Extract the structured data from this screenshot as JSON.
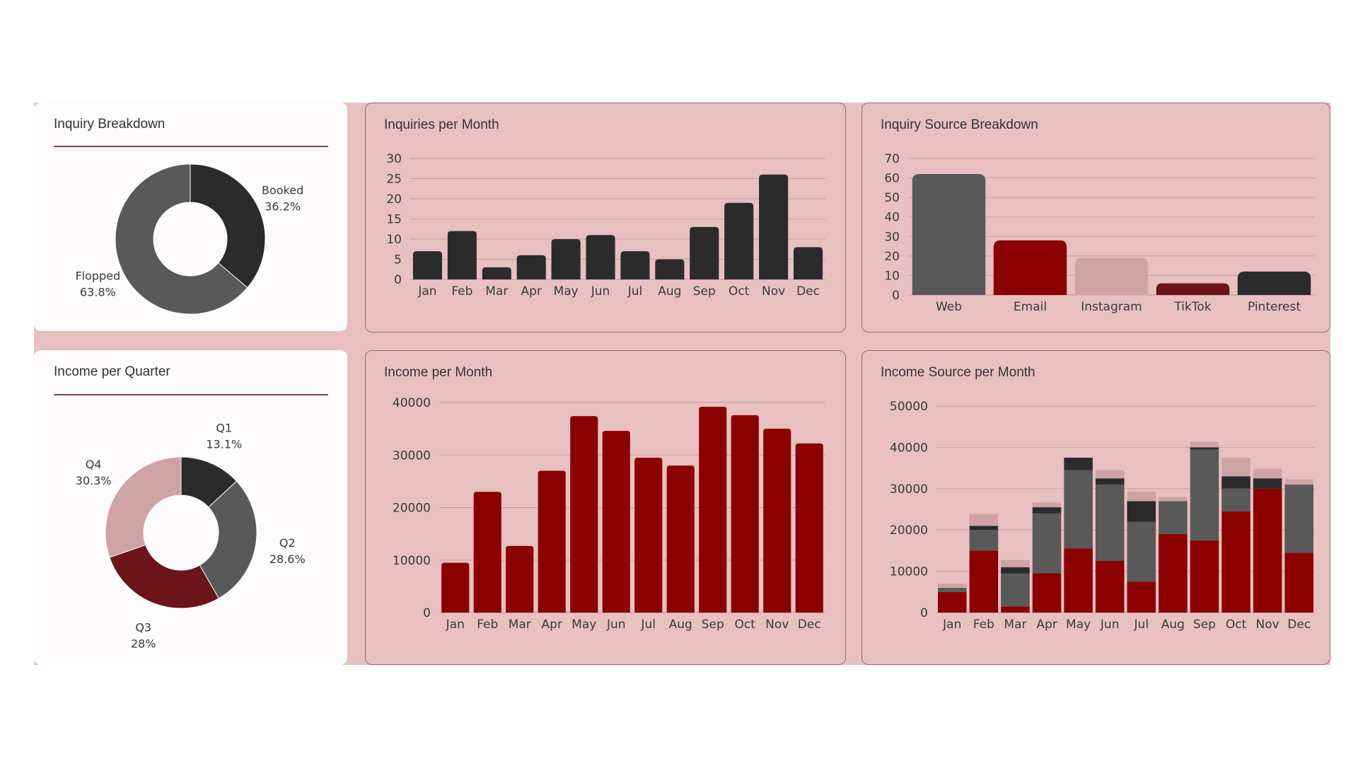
{
  "colors": {
    "dark": "#2b2b2b",
    "gray": "#595959",
    "red": "#8b0000",
    "maroon": "#6b1419",
    "rose": "#cfa3a3",
    "grid": "#c79a9a",
    "panel_pink": "#e8c0c0"
  },
  "panels": {
    "inquiry_breakdown": {
      "title": "Inquiry Breakdown"
    },
    "inquiries_per_month": {
      "title": "Inquiries per Month"
    },
    "inquiry_source": {
      "title": "Inquiry Source Breakdown"
    },
    "income_per_quarter": {
      "title": "Income per Quarter"
    },
    "income_per_month": {
      "title": "Income per Month"
    },
    "income_source_month": {
      "title": "Income Source per Month"
    }
  },
  "chart_data": [
    {
      "id": "inquiry_breakdown",
      "type": "pie",
      "title": "Inquiry Breakdown",
      "slices": [
        {
          "label": "Booked",
          "percent_label": "36.2%",
          "value": 36.2,
          "color": "#2b2b2b"
        },
        {
          "label": "Flopped",
          "percent_label": "63.8%",
          "value": 63.8,
          "color": "#595959"
        }
      ]
    },
    {
      "id": "inquiries_per_month",
      "type": "bar",
      "title": "Inquiries per Month",
      "categories": [
        "Jan",
        "Feb",
        "Mar",
        "Apr",
        "May",
        "Jun",
        "Jul",
        "Aug",
        "Sep",
        "Oct",
        "Nov",
        "Dec"
      ],
      "values": [
        7,
        12,
        3,
        6,
        10,
        11,
        7,
        5,
        13,
        19,
        26,
        8
      ],
      "ylim": [
        0,
        30
      ],
      "yticks": [
        0,
        5,
        10,
        15,
        20,
        25,
        30
      ],
      "color": "#2b2b2b",
      "grid": true
    },
    {
      "id": "inquiry_source",
      "type": "bar",
      "title": "Inquiry Source Breakdown",
      "categories": [
        "Web",
        "Email",
        "Instagram",
        "TikTok",
        "Pinterest"
      ],
      "values": [
        62,
        28,
        19,
        6,
        12
      ],
      "colors": [
        "#595959",
        "#8b0000",
        "#cfa3a3",
        "#6b1419",
        "#2b2b2b"
      ],
      "ylim": [
        0,
        70
      ],
      "yticks": [
        0,
        10,
        20,
        30,
        40,
        50,
        60,
        70
      ],
      "grid": true
    },
    {
      "id": "income_per_quarter",
      "type": "pie",
      "title": "Income per Quarter",
      "slices": [
        {
          "label": "Q1",
          "percent_label": "13.1%",
          "value": 13.1,
          "color": "#2b2b2b"
        },
        {
          "label": "Q2",
          "percent_label": "28.6%",
          "value": 28.6,
          "color": "#595959"
        },
        {
          "label": "Q3",
          "percent_label": "28%",
          "value": 28.0,
          "color": "#6b1419"
        },
        {
          "label": "Q4",
          "percent_label": "30.3%",
          "value": 30.3,
          "color": "#cfa3a3"
        }
      ]
    },
    {
      "id": "income_per_month",
      "type": "bar",
      "title": "Income per Month",
      "categories": [
        "Jan",
        "Feb",
        "Mar",
        "Apr",
        "May",
        "Jun",
        "Jul",
        "Aug",
        "Sep",
        "Oct",
        "Nov",
        "Dec"
      ],
      "values": [
        9500,
        23000,
        12700,
        27000,
        37400,
        34600,
        29500,
        28000,
        39200,
        37600,
        35000,
        32200
      ],
      "ylim": [
        0,
        40000
      ],
      "yticks": [
        0,
        10000,
        20000,
        30000,
        40000
      ],
      "color": "#8b0000",
      "grid": true
    },
    {
      "id": "income_source_month",
      "type": "bar",
      "stacked": true,
      "title": "Income Source per Month",
      "categories": [
        "Jan",
        "Feb",
        "Mar",
        "Apr",
        "May",
        "Jun",
        "Jul",
        "Aug",
        "Sep",
        "Oct",
        "Nov",
        "Dec"
      ],
      "ylim": [
        0,
        50000
      ],
      "yticks": [
        0,
        10000,
        20000,
        30000,
        40000,
        50000
      ],
      "grid": true,
      "series": [
        {
          "color": "#8b0000",
          "values": [
            5000,
            15000,
            1500,
            9500,
            15500,
            12500,
            7500,
            19000,
            17500,
            24500,
            30000,
            14500
          ]
        },
        {
          "color": "#595959",
          "values": [
            1000,
            5000,
            8000,
            14500,
            19000,
            18500,
            14500,
            8000,
            22000,
            5500,
            0,
            16500
          ]
        },
        {
          "color": "#2b2b2b",
          "values": [
            0,
            1000,
            1500,
            1500,
            3000,
            1500,
            5000,
            0,
            500,
            3000,
            2500,
            0
          ]
        },
        {
          "color": "#cfa3a3",
          "values": [
            1000,
            2900,
            1700,
            1200,
            0,
            2000,
            2300,
            1000,
            1300,
            4500,
            2300,
            1300
          ]
        }
      ]
    }
  ]
}
